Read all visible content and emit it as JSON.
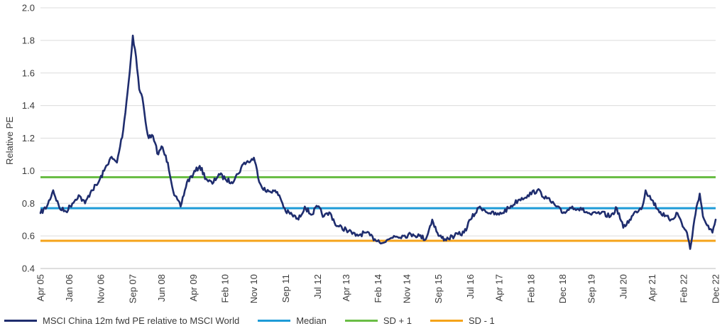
{
  "chart_data": {
    "type": "line",
    "title": "",
    "xlabel": "",
    "ylabel": "Relative PE",
    "ylim": [
      0.4,
      2.0
    ],
    "y_ticks": [
      "0.4",
      "0.6",
      "0.8",
      "1.0",
      "1.2",
      "1.4",
      "1.6",
      "1.8",
      "2.0"
    ],
    "x_ticks": [
      "Apr 05",
      "Jan 06",
      "Nov 06",
      "Sep 07",
      "Jun 08",
      "Apr 09",
      "Feb 10",
      "Nov 10",
      "Sep 11",
      "Jul 12",
      "Apr 13",
      "Feb 14",
      "Nov 14",
      "Sep 15",
      "Jul 16",
      "Apr 17",
      "Feb 18",
      "Dec 18",
      "Sep 19",
      "Jul 20",
      "Apr 21",
      "Feb 22",
      "Dec 22"
    ],
    "grid": "horizontal",
    "legend_position": "bottom",
    "series": [
      {
        "name": "MSCI China 12m fwd PE relative to MSCI World",
        "color": "#1f2d6e",
        "x": [
          "Apr 05",
          "Jun 05",
          "Aug 05",
          "Oct 05",
          "Dec 05",
          "Feb 06",
          "Apr 06",
          "Jun 06",
          "Aug 06",
          "Oct 06",
          "Dec 06",
          "Feb 07",
          "Apr 07",
          "Jun 07",
          "Aug 07",
          "Sep 07",
          "Oct 07",
          "Nov 07",
          "Dec 07",
          "Jan 08",
          "Feb 08",
          "Mar 08",
          "May 08",
          "Jun 08",
          "Aug 08",
          "Oct 08",
          "Dec 08",
          "Feb 09",
          "Apr 09",
          "Jun 09",
          "Aug 09",
          "Oct 09",
          "Dec 09",
          "Feb 10",
          "Apr 10",
          "Jun 10",
          "Aug 10",
          "Oct 10",
          "Nov 10",
          "Jan 11",
          "Mar 11",
          "May 11",
          "Jul 11",
          "Sep 11",
          "Nov 11",
          "Jan 12",
          "Mar 12",
          "May 12",
          "Jul 12",
          "Sep 12",
          "Nov 12",
          "Jan 13",
          "Apr 13",
          "Jul 13",
          "Oct 13",
          "Jan 14",
          "Apr 14",
          "Jul 14",
          "Oct 14",
          "Jan 15",
          "Mar 15",
          "May 15",
          "Jul 15",
          "Sep 15",
          "Nov 15",
          "Feb 16",
          "May 16",
          "Jul 16",
          "Oct 16",
          "Jan 17",
          "Apr 17",
          "Jul 17",
          "Oct 17",
          "Jan 18",
          "Apr 18",
          "Jul 18",
          "Oct 18",
          "Dec 18",
          "Mar 19",
          "Jun 19",
          "Sep 19",
          "Dec 19",
          "Mar 20",
          "May 20",
          "Jul 20",
          "Sep 20",
          "Nov 20",
          "Jan 21",
          "Feb 21",
          "Apr 21",
          "Jun 21",
          "Aug 21",
          "Oct 21",
          "Dec 21",
          "Feb 22",
          "Mar 22",
          "Apr 22",
          "Jun 22",
          "Jul 22",
          "Aug 22",
          "Oct 22",
          "Nov 22",
          "Dec 22"
        ],
        "values": [
          0.74,
          0.78,
          0.88,
          0.77,
          0.75,
          0.8,
          0.85,
          0.8,
          0.88,
          0.92,
          1.0,
          1.08,
          1.05,
          1.25,
          1.6,
          1.83,
          1.7,
          1.5,
          1.45,
          1.3,
          1.2,
          1.22,
          1.1,
          1.15,
          1.05,
          0.85,
          0.78,
          0.93,
          0.98,
          1.03,
          0.95,
          0.92,
          0.98,
          0.95,
          0.93,
          0.98,
          1.05,
          1.06,
          1.08,
          0.92,
          0.87,
          0.88,
          0.85,
          0.75,
          0.73,
          0.7,
          0.78,
          0.73,
          0.78,
          0.72,
          0.74,
          0.66,
          0.64,
          0.6,
          0.62,
          0.58,
          0.56,
          0.6,
          0.6,
          0.61,
          0.6,
          0.58,
          0.7,
          0.6,
          0.58,
          0.6,
          0.62,
          0.7,
          0.78,
          0.74,
          0.73,
          0.77,
          0.82,
          0.85,
          0.88,
          0.83,
          0.78,
          0.74,
          0.78,
          0.76,
          0.73,
          0.74,
          0.72,
          0.77,
          0.65,
          0.7,
          0.75,
          0.78,
          0.88,
          0.82,
          0.76,
          0.72,
          0.7,
          0.74,
          0.65,
          0.62,
          0.52,
          0.78,
          0.86,
          0.72,
          0.64,
          0.62,
          0.7
        ]
      },
      {
        "name": "Median",
        "color": "#1e9bd7",
        "x": [
          "Apr 05",
          "Dec 22"
        ],
        "values": [
          0.77,
          0.77
        ]
      },
      {
        "name": "SD + 1",
        "color": "#6abd45",
        "x": [
          "Apr 05",
          "Dec 22"
        ],
        "values": [
          0.96,
          0.96
        ]
      },
      {
        "name": "SD - 1",
        "color": "#f5a31a",
        "x": [
          "Apr 05",
          "Dec 22"
        ],
        "values": [
          0.57,
          0.57
        ]
      }
    ]
  }
}
